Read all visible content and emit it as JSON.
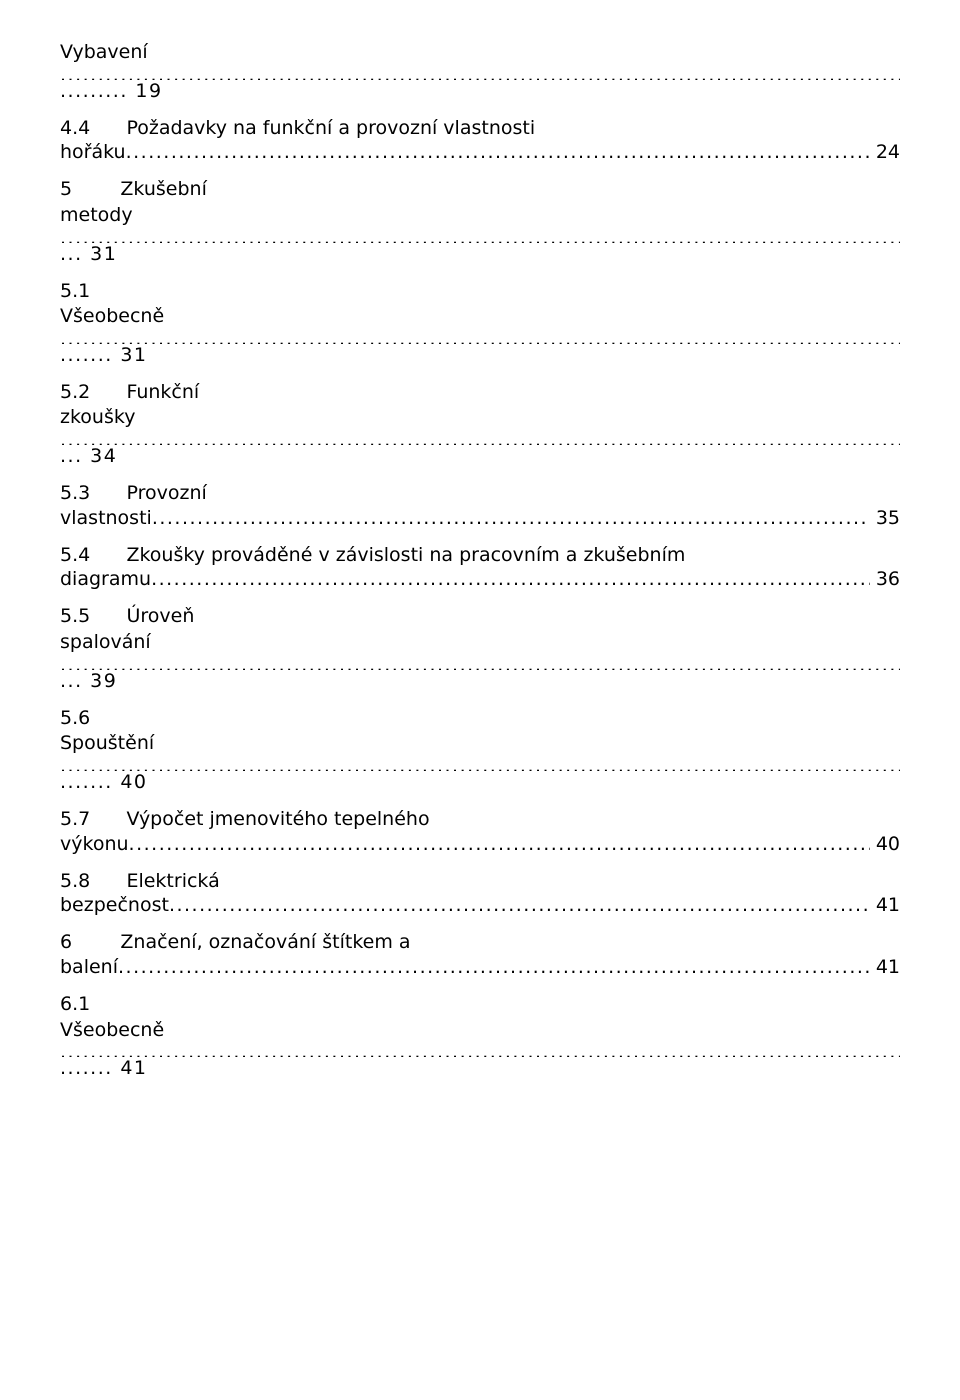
{
  "font": {
    "family": "DejaVu Sans / Verdana",
    "size_pt": 14
  },
  "colors": {
    "text": "#000000",
    "background": "#ffffff"
  },
  "entries": [
    {
      "title": "Vybavení",
      "page_label": "......... 19",
      "style": "leader_then_prefix"
    },
    {
      "title": "4.4      Požadavky na funkční a provozní vlastnosti\nhořáku",
      "page_label": " 24",
      "style": "inline_trailing"
    },
    {
      "title": "5        Zkušební\nmetody",
      "page_label": "... 31",
      "style": "leader_then_prefix"
    },
    {
      "title": "5.1\nVšeobecně",
      "page_label": "....... 31",
      "style": "leader_then_prefix"
    },
    {
      "title": "5.2      Funkční\nzkoušky",
      "page_label": "... 34",
      "style": "leader_then_prefix"
    },
    {
      "title": "5.3      Provozní\nvlastnosti",
      "page_label": " 35",
      "style": "inline_trailing"
    },
    {
      "title": "5.4      Zkoušky prováděné v závislosti na pracovním a zkušebním\ndiagramu",
      "page_label": " 36",
      "style": "inline_trailing"
    },
    {
      "title": "5.5      Úroveň\nspalování",
      "page_label": "... 39",
      "style": "leader_then_prefix"
    },
    {
      "title": "5.6\nSpouštění",
      "page_label": "....... 40",
      "style": "leader_then_prefix"
    },
    {
      "title": "5.7      Výpočet jmenovitého tepelného\nvýkonu",
      "page_label": " 40",
      "style": "inline_trailing"
    },
    {
      "title": "5.8      Elektrická\nbezpečnost",
      "page_label": " 41",
      "style": "inline_trailing"
    },
    {
      "title": "6        Značení, označování štítkem a\nbalení",
      "page_label": " 41",
      "style": "inline_trailing"
    },
    {
      "title": "6.1\nVšeobecně",
      "page_label": "....... 41",
      "style": "leader_then_prefix"
    }
  ]
}
